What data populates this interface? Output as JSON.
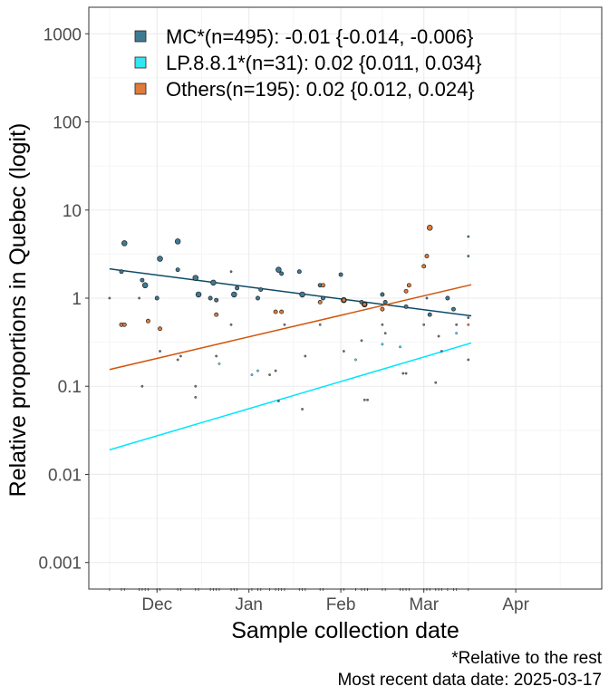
{
  "chart_data": {
    "type": "scatter",
    "xlabel": "Sample collection date",
    "ylabel": "Relative proportions in Quebec (logit)",
    "x_type": "date",
    "xlim": [
      "2024-11-08",
      "2025-04-30"
    ],
    "ylim": [
      0.0005,
      2000
    ],
    "y_scale": "log",
    "grid": true,
    "legend_position": "top-left",
    "x_ticks": [
      {
        "date": "2024-12-01",
        "label": "Dec"
      },
      {
        "date": "2025-01-01",
        "label": "Jan"
      },
      {
        "date": "2025-02-01",
        "label": "Feb"
      },
      {
        "date": "2025-03-01",
        "label": "Mar"
      },
      {
        "date": "2025-04-01",
        "label": "Apr"
      }
    ],
    "y_ticks": [
      {
        "value": 0.001,
        "label": "0.001"
      },
      {
        "value": 0.01,
        "label": "0.01"
      },
      {
        "value": 0.1,
        "label": "0.1"
      },
      {
        "value": 1,
        "label": "1"
      },
      {
        "value": 10,
        "label": "10"
      },
      {
        "value": 100,
        "label": "100"
      },
      {
        "value": 1000,
        "label": "1000"
      }
    ],
    "series": [
      {
        "name": "MC*(n=495): -0.01 {-0.014, -0.006}",
        "color": "#3f7a94",
        "line_color": "#0b4a66",
        "trend": [
          {
            "x": "2024-11-15",
            "y": 2.15
          },
          {
            "x": "2025-03-17",
            "y": 0.63
          }
        ],
        "points": [
          {
            "x": "2024-11-19",
            "y": 2.0,
            "s": 2
          },
          {
            "x": "2024-11-20",
            "y": 4.2,
            "s": 3
          },
          {
            "x": "2024-11-26",
            "y": 1.6,
            "s": 2
          },
          {
            "x": "2024-11-27",
            "y": 1.4,
            "s": 3
          },
          {
            "x": "2024-12-01",
            "y": 1.0,
            "s": 2
          },
          {
            "x": "2024-12-02",
            "y": 2.8,
            "s": 3
          },
          {
            "x": "2024-12-08",
            "y": 4.4,
            "s": 3
          },
          {
            "x": "2024-12-08",
            "y": 2.1,
            "s": 2
          },
          {
            "x": "2024-12-14",
            "y": 1.7,
            "s": 3
          },
          {
            "x": "2024-12-15",
            "y": 1.1,
            "s": 3
          },
          {
            "x": "2024-12-19",
            "y": 1.0,
            "s": 2
          },
          {
            "x": "2024-12-20",
            "y": 1.5,
            "s": 3
          },
          {
            "x": "2024-12-21",
            "y": 0.95,
            "s": 2
          },
          {
            "x": "2024-12-26",
            "y": 2.0,
            "s": 1
          },
          {
            "x": "2024-12-27",
            "y": 1.1,
            "s": 3
          },
          {
            "x": "2024-12-28",
            "y": 1.3,
            "s": 2
          },
          {
            "x": "2025-01-04",
            "y": 1.0,
            "s": 2
          },
          {
            "x": "2025-01-05",
            "y": 1.25,
            "s": 2
          },
          {
            "x": "2025-01-11",
            "y": 2.1,
            "s": 3
          },
          {
            "x": "2025-01-12",
            "y": 1.9,
            "s": 2
          },
          {
            "x": "2025-01-18",
            "y": 2.0,
            "s": 2
          },
          {
            "x": "2025-01-19",
            "y": 1.1,
            "s": 3
          },
          {
            "x": "2025-01-25",
            "y": 1.4,
            "s": 2
          },
          {
            "x": "2025-01-26",
            "y": 1.0,
            "s": 2
          },
          {
            "x": "2025-02-01",
            "y": 1.85,
            "s": 2
          },
          {
            "x": "2025-02-02",
            "y": 0.95,
            "s": 3
          },
          {
            "x": "2025-02-08",
            "y": 0.9,
            "s": 2
          },
          {
            "x": "2025-02-09",
            "y": 0.85,
            "s": 3
          },
          {
            "x": "2025-02-15",
            "y": 1.1,
            "s": 2
          },
          {
            "x": "2025-02-16",
            "y": 0.9,
            "s": 2
          },
          {
            "x": "2025-02-23",
            "y": 0.8,
            "s": 2
          },
          {
            "x": "2025-03-02",
            "y": 1.0,
            "s": 1
          },
          {
            "x": "2025-03-03",
            "y": 0.65,
            "s": 2
          },
          {
            "x": "2025-03-09",
            "y": 1.0,
            "s": 2
          },
          {
            "x": "2025-03-11",
            "y": 0.75,
            "s": 2
          },
          {
            "x": "2025-03-16",
            "y": 5.0,
            "s": 1
          },
          {
            "x": "2025-03-16",
            "y": 3.0,
            "s": 1
          },
          {
            "x": "2025-03-16",
            "y": 0.6,
            "s": 1
          }
        ]
      },
      {
        "name": "LP.8.8.1*(n=31): 0.02 {0.011, 0.034}",
        "color": "#33e6f0",
        "line_color": "#00e5ff",
        "trend": [
          {
            "x": "2024-11-15",
            "y": 0.019
          },
          {
            "x": "2025-03-17",
            "y": 0.31
          }
        ],
        "points": [
          {
            "x": "2024-12-22",
            "y": 0.18,
            "s": 1
          },
          {
            "x": "2025-01-02",
            "y": 0.135,
            "s": 1
          },
          {
            "x": "2025-01-04",
            "y": 0.15,
            "s": 1
          },
          {
            "x": "2025-02-06",
            "y": 0.2,
            "s": 1
          },
          {
            "x": "2025-02-15",
            "y": 0.3,
            "s": 1
          },
          {
            "x": "2025-02-21",
            "y": 0.28,
            "s": 1
          },
          {
            "x": "2025-03-12",
            "y": 0.4,
            "s": 1
          }
        ]
      },
      {
        "name": "Others(n=195): 0.02 {0.012, 0.024}",
        "color": "#e07b39",
        "line_color": "#d2550a",
        "trend": [
          {
            "x": "2024-11-15",
            "y": 0.155
          },
          {
            "x": "2025-03-17",
            "y": 1.42
          }
        ],
        "points": [
          {
            "x": "2024-11-19",
            "y": 0.5,
            "s": 2
          },
          {
            "x": "2024-11-20",
            "y": 0.5,
            "s": 2
          },
          {
            "x": "2024-11-28",
            "y": 0.55,
            "s": 2
          },
          {
            "x": "2024-12-02",
            "y": 0.45,
            "s": 2
          },
          {
            "x": "2024-12-21",
            "y": 0.65,
            "s": 2
          },
          {
            "x": "2025-01-10",
            "y": 0.7,
            "s": 2
          },
          {
            "x": "2025-01-12",
            "y": 0.7,
            "s": 2
          },
          {
            "x": "2025-01-25",
            "y": 0.9,
            "s": 2
          },
          {
            "x": "2025-01-26",
            "y": 1.4,
            "s": 2
          },
          {
            "x": "2025-02-02",
            "y": 0.95,
            "s": 2
          },
          {
            "x": "2025-02-09",
            "y": 0.85,
            "s": 2
          },
          {
            "x": "2025-02-15",
            "y": 0.75,
            "s": 2
          },
          {
            "x": "2025-02-23",
            "y": 1.2,
            "s": 2
          },
          {
            "x": "2025-02-24",
            "y": 1.4,
            "s": 2
          },
          {
            "x": "2025-03-01",
            "y": 2.3,
            "s": 2
          },
          {
            "x": "2025-03-02",
            "y": 3.0,
            "s": 2
          },
          {
            "x": "2025-03-03",
            "y": 6.3,
            "s": 3
          },
          {
            "x": "2025-03-16",
            "y": 0.5,
            "s": 1
          }
        ]
      },
      {
        "name": "",
        "color": "#777777",
        "line_color": "#777777",
        "trend": [],
        "points": [
          {
            "x": "2024-11-15",
            "y": 1.0,
            "s": 1
          },
          {
            "x": "2024-11-25",
            "y": 1.0,
            "s": 1
          },
          {
            "x": "2024-11-26",
            "y": 0.1,
            "s": 1
          },
          {
            "x": "2024-12-02",
            "y": 0.25,
            "s": 1
          },
          {
            "x": "2024-12-08",
            "y": 0.2,
            "s": 1
          },
          {
            "x": "2024-12-09",
            "y": 0.22,
            "s": 1
          },
          {
            "x": "2024-12-14",
            "y": 0.1,
            "s": 1
          },
          {
            "x": "2024-12-14",
            "y": 0.075,
            "s": 1
          },
          {
            "x": "2024-12-21",
            "y": 0.22,
            "s": 1
          },
          {
            "x": "2024-12-26",
            "y": 0.5,
            "s": 1
          },
          {
            "x": "2025-01-08",
            "y": 0.135,
            "s": 1
          },
          {
            "x": "2025-01-10",
            "y": 0.15,
            "s": 1
          },
          {
            "x": "2025-01-11",
            "y": 0.068,
            "s": 1
          },
          {
            "x": "2025-01-13",
            "y": 0.5,
            "s": 1
          },
          {
            "x": "2025-01-19",
            "y": 0.055,
            "s": 1
          },
          {
            "x": "2025-01-20",
            "y": 0.22,
            "s": 1
          },
          {
            "x": "2025-01-25",
            "y": 0.5,
            "s": 1
          },
          {
            "x": "2025-02-02",
            "y": 0.25,
            "s": 1
          },
          {
            "x": "2025-02-08",
            "y": 0.33,
            "s": 1
          },
          {
            "x": "2025-02-09",
            "y": 0.07,
            "s": 1
          },
          {
            "x": "2025-02-10",
            "y": 0.07,
            "s": 1
          },
          {
            "x": "2025-02-15",
            "y": 0.5,
            "s": 1
          },
          {
            "x": "2025-02-16",
            "y": 0.4,
            "s": 1
          },
          {
            "x": "2025-02-22",
            "y": 0.14,
            "s": 1
          },
          {
            "x": "2025-02-23",
            "y": 0.14,
            "s": 1
          },
          {
            "x": "2025-03-01",
            "y": 0.5,
            "s": 1
          },
          {
            "x": "2025-03-05",
            "y": 0.11,
            "s": 1
          },
          {
            "x": "2025-03-06",
            "y": 0.37,
            "s": 1
          },
          {
            "x": "2025-03-07",
            "y": 0.25,
            "s": 1
          },
          {
            "x": "2025-03-12",
            "y": 0.5,
            "s": 1
          },
          {
            "x": "2025-03-16",
            "y": 0.2,
            "s": 1
          }
        ]
      }
    ]
  },
  "caption": {
    "line1": "*Relative to the rest",
    "line2": "Most recent data date: 2025-03-17"
  },
  "colors": {
    "panel_border": "#333333",
    "grid_major": "#ebebeb",
    "grid_minor": "#f5f5f5",
    "axis_text": "#4d4d4d"
  }
}
